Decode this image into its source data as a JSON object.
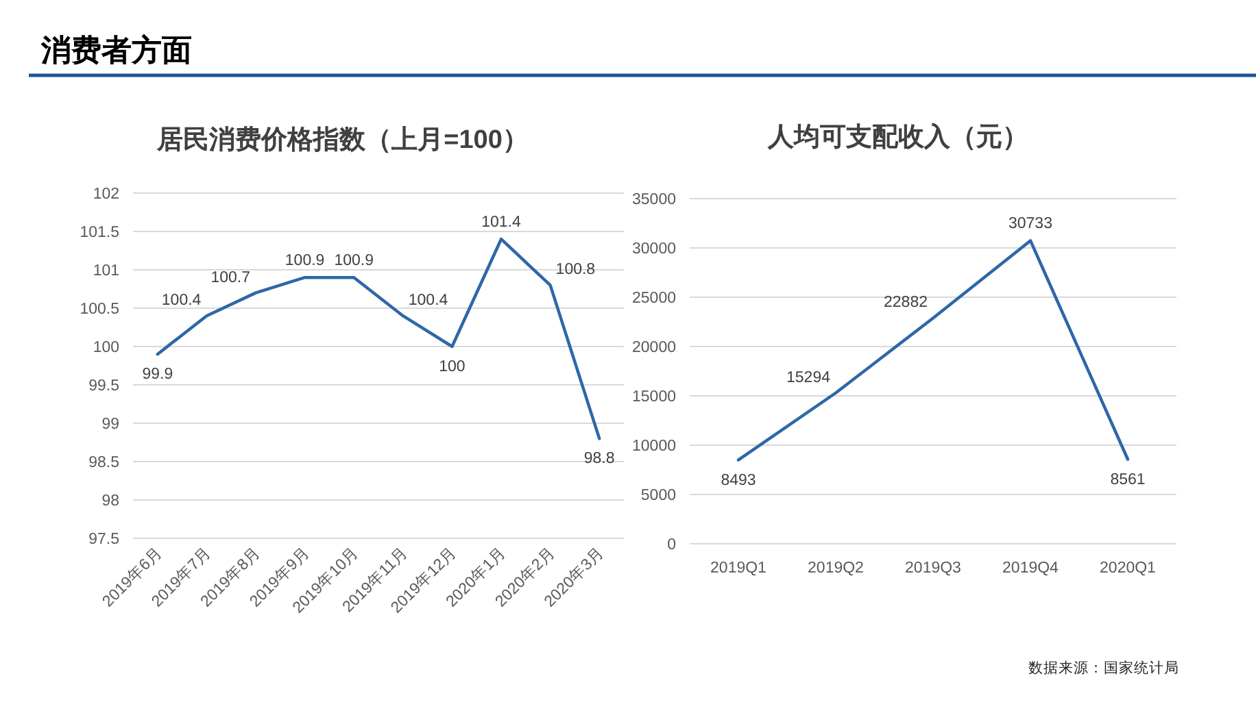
{
  "chart_data": [
    {
      "type": "other",
      "title": "消费者方面",
      "annotations": [
        "数据来源：国家统计局"
      ]
    },
    {
      "type": "line",
      "title": "居民消费价格指数（上月=100）",
      "categories": [
        "2019年6月",
        "2019年7月",
        "2019年8月",
        "2019年9月",
        "2019年10月",
        "2019年11月",
        "2019年12月",
        "2020年1月",
        "2020年2月",
        "2020年3月"
      ],
      "values": [
        99.9,
        100.4,
        100.7,
        100.9,
        100.9,
        100.4,
        100,
        101.4,
        100.8,
        98.8
      ],
      "color": "#2e67a8",
      "ylim": [
        97.5,
        102
      ],
      "yticks": [
        97.5,
        98,
        98.5,
        99,
        99.5,
        100,
        100.5,
        101,
        101.5,
        102
      ],
      "grid": "y",
      "data_labels": true
    },
    {
      "type": "line",
      "title": "人均可支配收入（元）",
      "categories": [
        "2019Q1",
        "2019Q2",
        "2019Q3",
        "2019Q4",
        "2020Q1"
      ],
      "values": [
        8493,
        15294,
        22882,
        30733,
        8561
      ],
      "color": "#2e67a8",
      "ylim": [
        0,
        35000
      ],
      "yticks": [
        0,
        5000,
        10000,
        15000,
        20000,
        25000,
        30000,
        35000
      ],
      "grid": "y",
      "data_labels": true
    }
  ]
}
